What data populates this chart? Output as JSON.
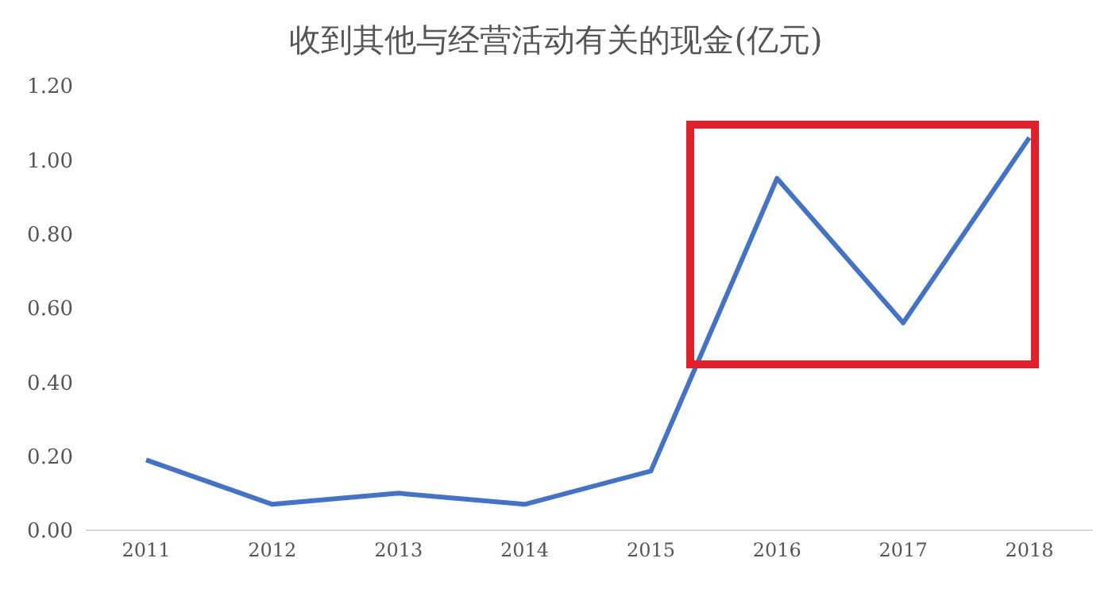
{
  "chart_data": {
    "type": "line",
    "title": "收到其他与经营活动有关的现金(亿元)",
    "categories": [
      "2011",
      "2012",
      "2013",
      "2014",
      "2015",
      "2016",
      "2017",
      "2018"
    ],
    "series": [
      {
        "color": "#4472c4",
        "values": [
          0.19,
          0.07,
          0.1,
          0.07,
          0.16,
          0.95,
          0.56,
          1.06
        ]
      }
    ],
    "ylim": [
      0,
      1.2
    ],
    "yticks": [
      {
        "value": 0,
        "label": "0.00"
      },
      {
        "value": 0.2,
        "label": "0.20"
      },
      {
        "value": 0.4,
        "label": "0.40"
      },
      {
        "value": 0.6,
        "label": "0.60"
      },
      {
        "value": 0.8,
        "label": "0.80"
      },
      {
        "value": 1,
        "label": "1.00"
      },
      {
        "value": 1.2,
        "label": "1.20"
      }
    ],
    "grid": false,
    "legend": false,
    "marker": "none",
    "line_style": "solid"
  }
}
